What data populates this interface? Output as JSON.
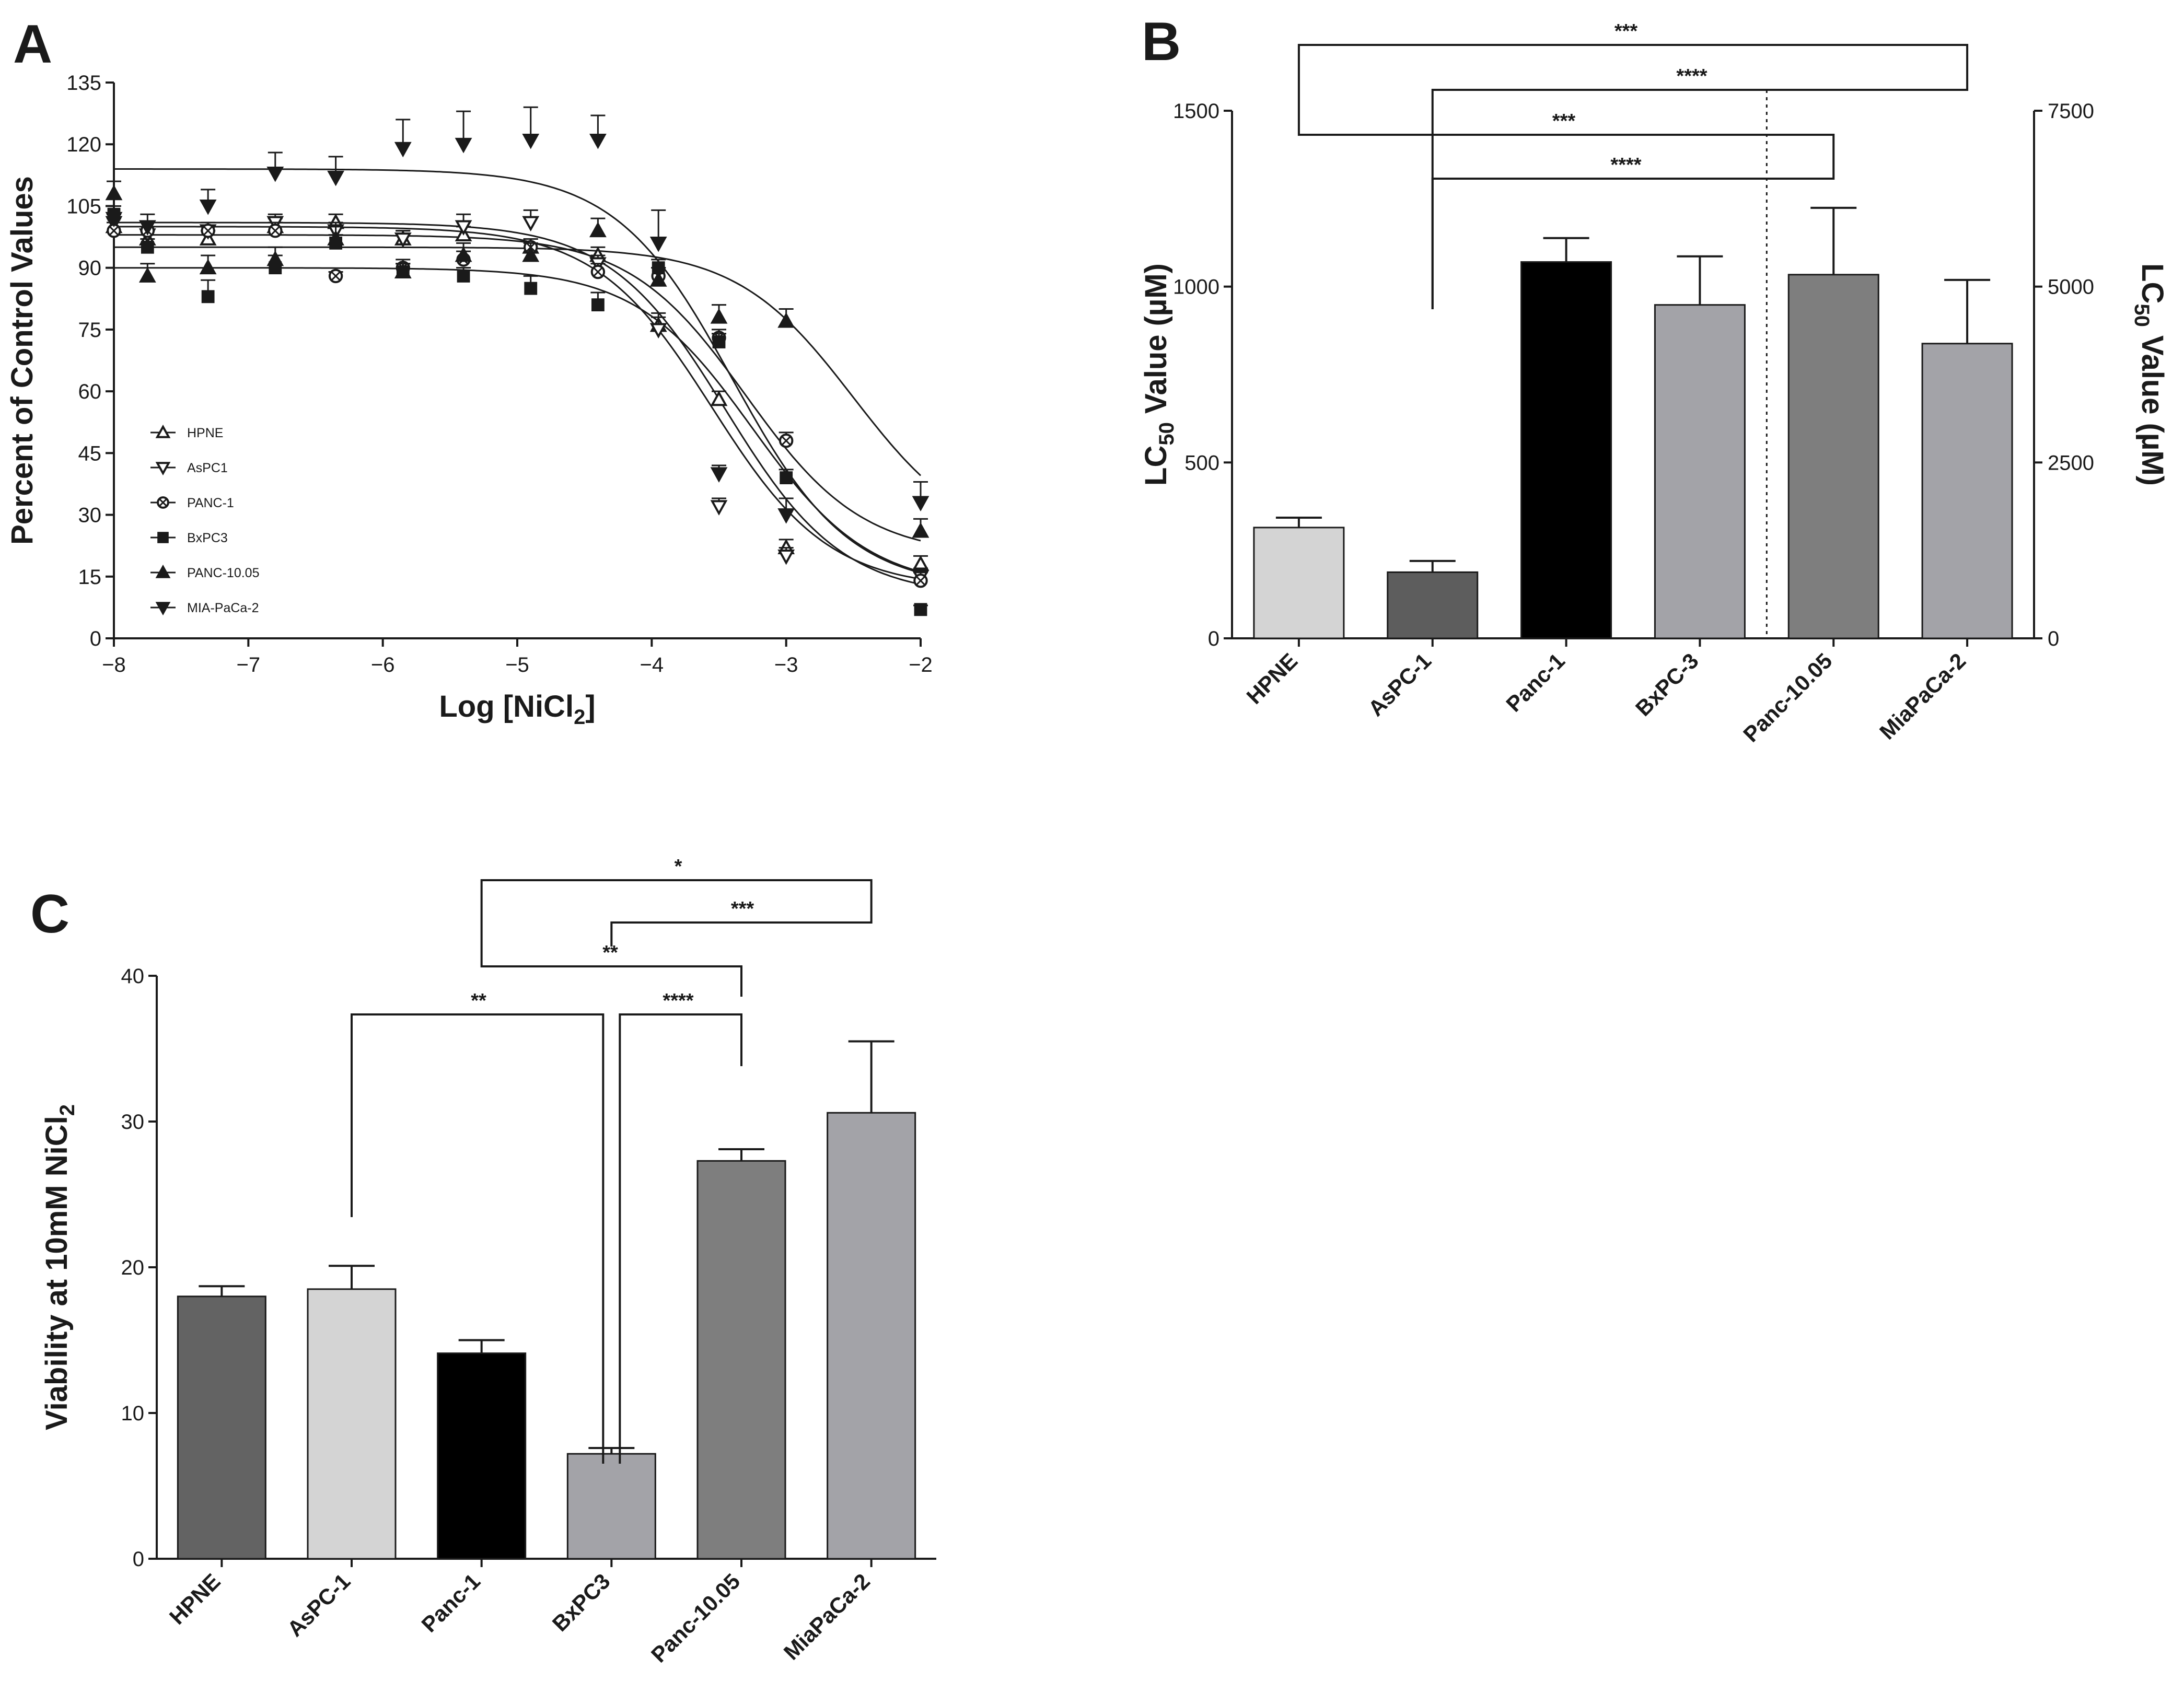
{
  "chart_data": [
    {
      "panel": "A",
      "type": "scatter",
      "xlabel": "Log [NiCl",
      "xlabel_sub": "2",
      "xlabel_end": "]",
      "ylabel": "Percent of Control Values",
      "xlim": [
        -8,
        -2
      ],
      "ylim": [
        0,
        135
      ],
      "xticks": [
        -8,
        -7,
        -6,
        -5,
        -4,
        -3,
        -2
      ],
      "yticks": [
        0,
        15,
        30,
        45,
        60,
        75,
        90,
        105,
        120,
        135
      ],
      "x": [
        -8,
        -7.75,
        -7.3,
        -6.8,
        -6.35,
        -5.85,
        -5.4,
        -4.9,
        -4.4,
        -3.95,
        -3.5,
        -3,
        -2
      ],
      "series": [
        {
          "name": "HPNE",
          "marker": "triangle-up-open",
          "values": [
            100,
            97,
            97,
            100,
            101,
            97,
            98,
            95,
            93,
            76,
            58,
            22,
            18
          ],
          "err": [
            2,
            2,
            2,
            2,
            2,
            2,
            2,
            2,
            2,
            3,
            2,
            2,
            2
          ],
          "fit": {
            "top": 100,
            "bottom": 12,
            "logec50": -3.55,
            "hill": 1.0
          }
        },
        {
          "name": "AsPC1",
          "marker": "triangle-down-open",
          "values": [
            101,
            98,
            99,
            101,
            99,
            97,
            100,
            101,
            91,
            75,
            32,
            20,
            15
          ],
          "err": [
            2,
            2,
            2,
            2,
            2,
            2,
            3,
            3,
            2,
            3,
            2,
            2,
            2
          ],
          "fit": {
            "top": 101,
            "bottom": 10,
            "logec50": -3.45,
            "hill": 1.0
          }
        },
        {
          "name": "PANC-1",
          "marker": "circle-cross-open",
          "values": [
            99,
            99,
            99,
            99,
            88,
            90,
            92,
            95,
            89,
            88,
            73,
            48,
            14
          ],
          "err": [
            2,
            2,
            2,
            2,
            1,
            2,
            2,
            2,
            2,
            2,
            2,
            2,
            2
          ],
          "fit": {
            "top": 98,
            "bottom": 20,
            "logec50": -3.3,
            "hill": 1.0
          }
        },
        {
          "name": "BxPC3",
          "marker": "square-filled",
          "values": [
            103,
            95,
            83,
            90,
            96,
            89,
            88,
            85,
            81,
            90,
            72,
            39,
            7
          ],
          "err": [
            2,
            2,
            4,
            3,
            2,
            2,
            2,
            3,
            3,
            2,
            2,
            2,
            1
          ],
          "fit": {
            "top": 90,
            "bottom": 12,
            "logec50": -3.25,
            "hill": 1.0
          }
        },
        {
          "name": "PANC-10.05",
          "marker": "triangle-up-filled",
          "values": [
            108,
            88,
            90,
            92,
            97,
            89,
            93,
            93,
            99,
            87,
            78,
            77,
            26
          ],
          "err": [
            3,
            3,
            3,
            3,
            3,
            2,
            3,
            3,
            3,
            3,
            3,
            3,
            3
          ],
          "fit": {
            "top": 95,
            "bottom": 22,
            "logec50": -2.5,
            "hill": 1.0
          }
        },
        {
          "name": "MIA-PaCa-2",
          "marker": "triangle-down-filled",
          "values": [
            102,
            100,
            105,
            113,
            112,
            119,
            120,
            121,
            121,
            96,
            40,
            30,
            33
          ],
          "err": [
            3,
            3,
            4,
            5,
            5,
            7,
            8,
            8,
            6,
            8,
            2,
            4,
            5
          ],
          "fit": {
            "top": 114,
            "bottom": 12,
            "logec50": -3.4,
            "hill": 1.0
          }
        }
      ]
    },
    {
      "panel": "B",
      "type": "bar",
      "ylabel": "LC",
      "ylabel_sub": "50",
      "ylabel_end": " Value (µM)",
      "ylabel_right": "LC",
      "ylabel_right_sub": "50",
      "ylabel_right_end": " Value (µM)",
      "ylim": [
        0,
        1500
      ],
      "yticks": [
        0,
        500,
        1000,
        1500
      ],
      "ylim_right": [
        0,
        7500
      ],
      "yticks_right": [
        0,
        2500,
        5000,
        7500
      ],
      "categories": [
        "HPNE",
        "AsPC-1",
        "Panc-1",
        "BxPC-3",
        "Panc-10.05",
        "MiaPaCa-2"
      ],
      "values": [
        315,
        188,
        1070,
        948,
        5170,
        4190
      ],
      "err": [
        28,
        32,
        68,
        138,
        950,
        905
      ],
      "axis": [
        "left",
        "left",
        "left",
        "left",
        "right",
        "right"
      ],
      "colors": [
        "#d4d4d4",
        "#5d5d5d",
        "#000000",
        "#a3a3a8",
        "#7e7e7e",
        "#a3a3a8"
      ],
      "comparisons": [
        {
          "from": 0,
          "to": 5,
          "label": "***"
        },
        {
          "from": 1,
          "to": 5,
          "label": "****"
        },
        {
          "from": 0,
          "to": 4,
          "label": "***"
        },
        {
          "from": 1,
          "to": 4,
          "label": "****"
        }
      ]
    },
    {
      "panel": "C",
      "type": "bar",
      "ylabel": "Viability at 10mM NiCl",
      "ylabel_sub": "2",
      "ylim": [
        0,
        40
      ],
      "yticks": [
        0,
        10,
        20,
        30,
        40
      ],
      "categories": [
        "HPNE",
        "AsPC-1",
        "Panc-1",
        "BxPC3",
        "Panc-10.05",
        "MiaPaCa-2"
      ],
      "values": [
        18,
        18.5,
        14.1,
        7.2,
        27.3,
        30.6
      ],
      "err": [
        0.7,
        1.6,
        0.9,
        0.4,
        0.8,
        4.9
      ],
      "colors": [
        "#636363",
        "#d4d4d4",
        "#000000",
        "#a3a3a8",
        "#7e7e7e",
        "#a3a3a8"
      ],
      "comparisons": [
        {
          "from": 2,
          "to": 5,
          "label": "*"
        },
        {
          "from": 3,
          "to": 5,
          "label": "***"
        },
        {
          "from": 2,
          "to": 4,
          "label": "**"
        },
        {
          "from": 1,
          "to": 3,
          "label": "**"
        },
        {
          "from": 3,
          "to": 4,
          "label": "****"
        }
      ]
    }
  ]
}
